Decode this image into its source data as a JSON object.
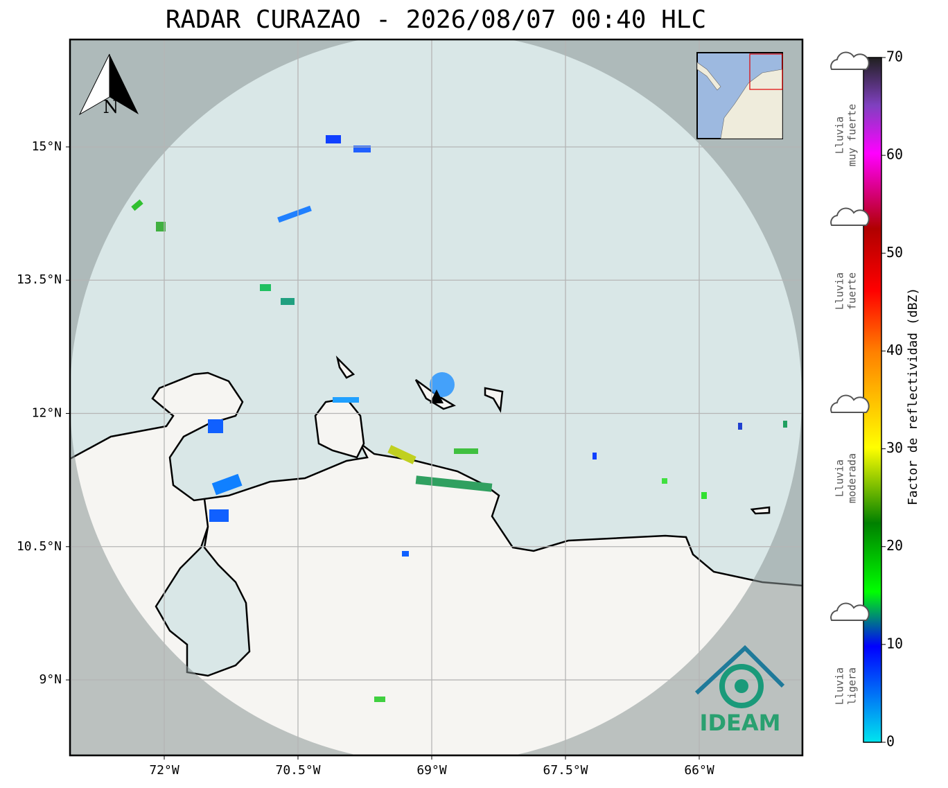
{
  "title": "RADAR CURAZAO - 2026/08/07 00:40 HLC",
  "map": {
    "xlim": [
      -73.057,
      -64.842
    ],
    "ylim": [
      8.15,
      16.209
    ],
    "xticks": [
      {
        "value": -72,
        "label": "72°W"
      },
      {
        "value": -70.5,
        "label": "70.5°W"
      },
      {
        "value": -69,
        "label": "69°W"
      },
      {
        "value": -67.5,
        "label": "67.5°W"
      },
      {
        "value": -66,
        "label": "66°W"
      }
    ],
    "yticks": [
      {
        "value": 15,
        "label": "15°N"
      },
      {
        "value": 13.5,
        "label": "13.5°N"
      },
      {
        "value": 12,
        "label": "12°N"
      },
      {
        "value": 10.5,
        "label": "10.5°N"
      },
      {
        "value": 9,
        "label": "9°N"
      }
    ],
    "north": "N",
    "logo": "IDEAM"
  },
  "colorbar": {
    "label": "Factor de reflectividad (dBZ)",
    "lim": [
      0,
      70
    ],
    "ticks": [
      0,
      10,
      20,
      30,
      40,
      50,
      60,
      70
    ]
  },
  "rain_legend": [
    [
      "Lluvia",
      "muy fuerte"
    ],
    [
      "Lluvia",
      "fuerte"
    ],
    [
      "Lluvia",
      "moderada"
    ],
    [
      "Lluvia",
      "ligera"
    ]
  ]
}
